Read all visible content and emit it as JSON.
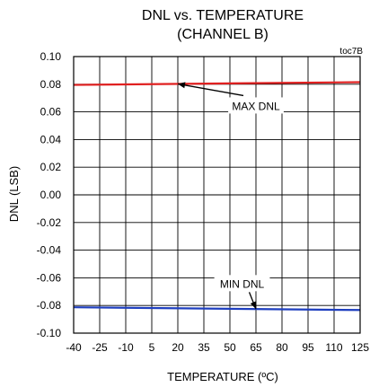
{
  "chart_data": {
    "type": "line",
    "title": "DNL vs. TEMPERATURE",
    "subtitle": "(CHANNEL B)",
    "figure_id": "toc7B",
    "xlabel": "TEMPERATURE (ºC)",
    "ylabel": "DNL (LSB)",
    "xlim": [
      -40,
      125
    ],
    "ylim": [
      -0.1,
      0.1
    ],
    "x_ticks": [
      "-40",
      "-25",
      "-10",
      "5",
      "20",
      "35",
      "50",
      "65",
      "80",
      "95",
      "110",
      "125"
    ],
    "y_ticks": [
      "0.10",
      "0.08",
      "0.06",
      "0.04",
      "0.02",
      "0.00",
      "-0.02",
      "-0.04",
      "-0.06",
      "-0.08",
      "-0.10"
    ],
    "grid": true,
    "series": [
      {
        "name": "MAX DNL",
        "color": "#e02020",
        "x": [
          -40,
          125
        ],
        "y": [
          0.0795,
          0.0815
        ]
      },
      {
        "name": "MIN DNL",
        "color": "#1f3fbf",
        "x": [
          -40,
          125
        ],
        "y": [
          -0.0813,
          -0.0833
        ]
      }
    ],
    "annotations": [
      {
        "text": "MAX DNL",
        "series": 0,
        "point_x": 20,
        "label_x": 65,
        "label_y": 0.064
      },
      {
        "text": "MIN DNL",
        "series": 1,
        "point_x": 65,
        "label_x": 57,
        "label_y": -0.0645
      }
    ]
  }
}
